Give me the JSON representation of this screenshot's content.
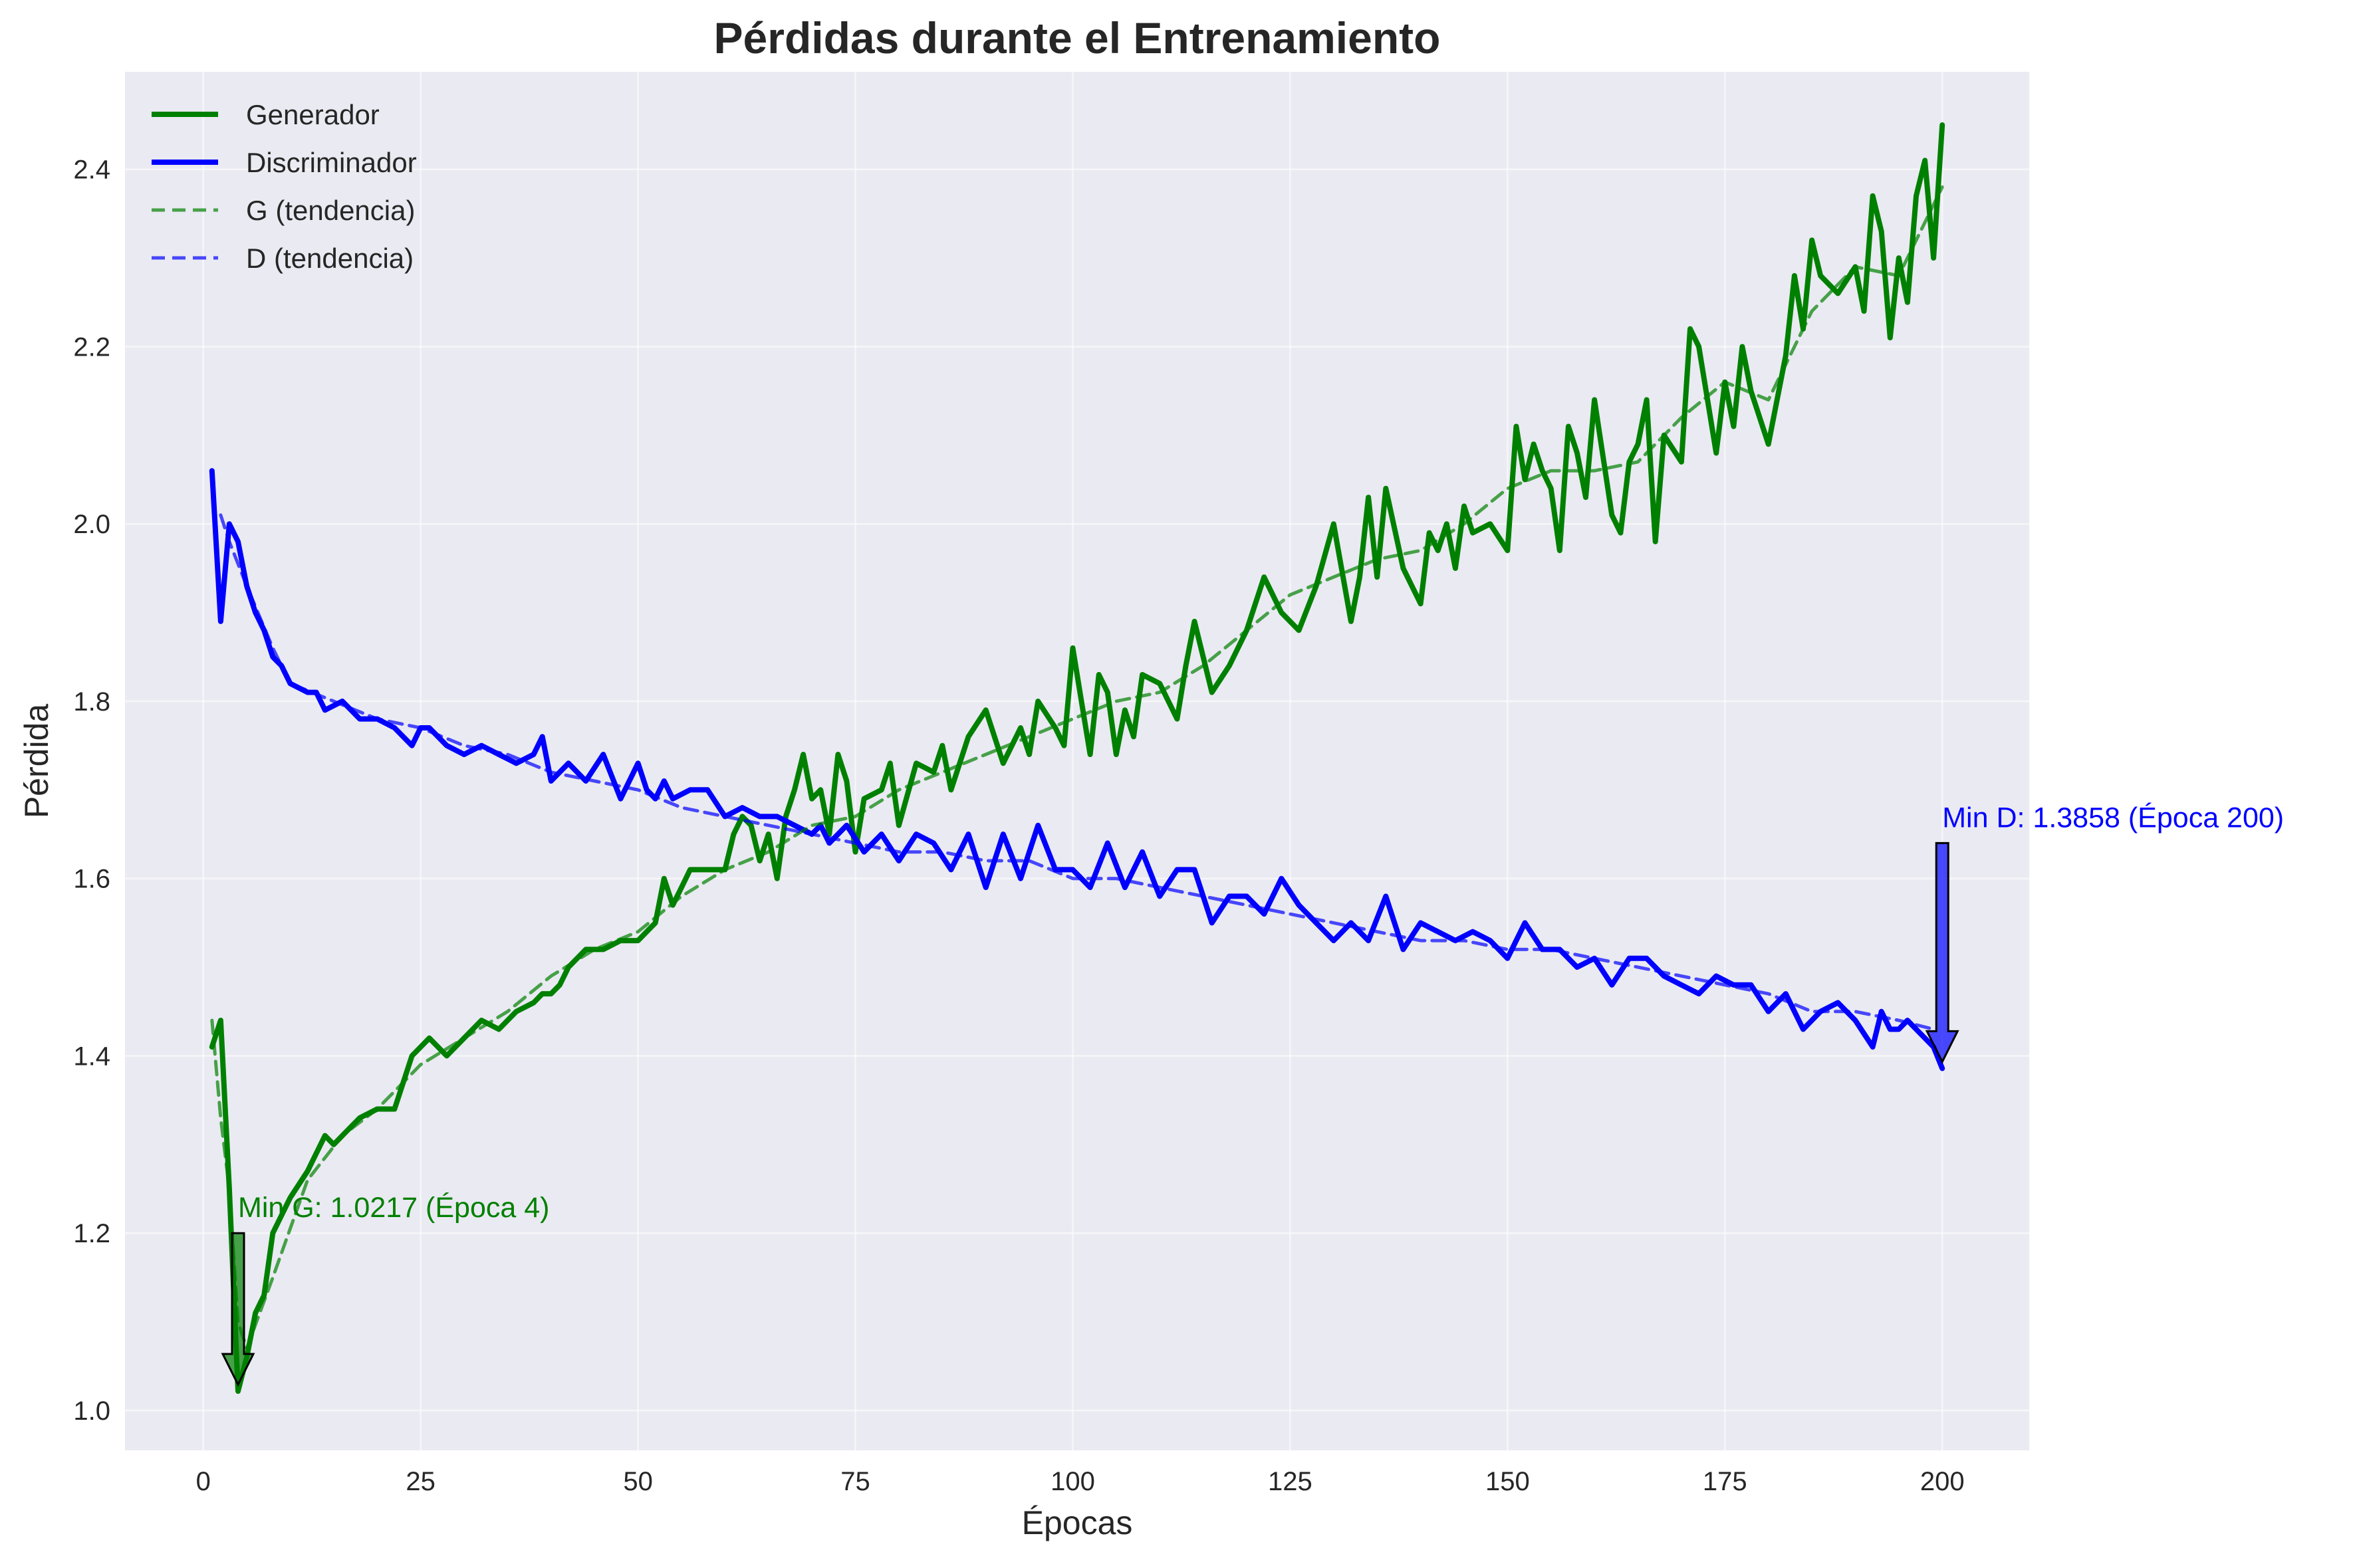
{
  "chart_data": {
    "type": "line",
    "title": "Pérdidas durante el Entrenamiento",
    "xlabel": "Épocas",
    "ylabel": "Pérdida",
    "xlim": [
      -9,
      210
    ],
    "ylim": [
      0.955,
      2.51
    ],
    "xticks": [
      0,
      25,
      50,
      75,
      100,
      125,
      150,
      175,
      200
    ],
    "yticks": [
      1.0,
      1.2,
      1.4,
      1.6,
      1.8,
      2.0,
      2.2,
      2.4
    ],
    "grid": true,
    "legend_position": "top-left",
    "legend": [
      {
        "label": "Generador",
        "color": "#008000",
        "style": "solid"
      },
      {
        "label": "Discriminador",
        "color": "#0000ff",
        "style": "solid"
      },
      {
        "label": "G (tendencia)",
        "color": "#008000",
        "style": "dashed"
      },
      {
        "label": "D (tendencia)",
        "color": "#0000ff",
        "style": "dashed"
      }
    ],
    "series": [
      {
        "name": "Generador",
        "color": "#008000",
        "x": [
          1,
          2,
          3,
          4,
          5,
          6,
          7,
          8,
          10,
          12,
          14,
          15,
          16,
          18,
          20,
          22,
          24,
          26,
          28,
          30,
          32,
          34,
          36,
          38,
          39,
          40,
          41,
          42,
          44,
          46,
          48,
          50,
          52,
          53,
          54,
          55,
          56,
          58,
          60,
          61,
          62,
          63,
          64,
          65,
          66,
          67,
          68,
          69,
          70,
          71,
          72,
          73,
          74,
          75,
          76,
          78,
          79,
          80,
          82,
          84,
          85,
          86,
          88,
          90,
          92,
          93,
          94,
          95,
          96,
          98,
          99,
          100,
          101,
          102,
          103,
          104,
          105,
          106,
          107,
          108,
          110,
          112,
          113,
          114,
          116,
          118,
          120,
          122,
          124,
          126,
          128,
          130,
          132,
          133,
          134,
          135,
          136,
          138,
          140,
          141,
          142,
          143,
          144,
          145,
          146,
          148,
          150,
          151,
          152,
          153,
          154,
          155,
          156,
          157,
          158,
          159,
          160,
          162,
          163,
          164,
          165,
          166,
          167,
          168,
          170,
          171,
          172,
          174,
          175,
          176,
          177,
          178,
          180,
          182,
          183,
          184,
          185,
          186,
          188,
          190,
          191,
          192,
          193,
          194,
          195,
          196,
          197,
          198,
          199,
          200
        ],
        "values": [
          1.41,
          1.44,
          1.25,
          1.0217,
          1.06,
          1.11,
          1.13,
          1.2,
          1.24,
          1.27,
          1.31,
          1.3,
          1.31,
          1.33,
          1.34,
          1.34,
          1.4,
          1.42,
          1.4,
          1.42,
          1.44,
          1.43,
          1.45,
          1.46,
          1.47,
          1.47,
          1.48,
          1.5,
          1.52,
          1.52,
          1.53,
          1.53,
          1.55,
          1.6,
          1.57,
          1.59,
          1.61,
          1.61,
          1.61,
          1.65,
          1.67,
          1.66,
          1.62,
          1.65,
          1.6,
          1.67,
          1.7,
          1.74,
          1.69,
          1.7,
          1.65,
          1.74,
          1.71,
          1.63,
          1.69,
          1.7,
          1.73,
          1.66,
          1.73,
          1.72,
          1.75,
          1.7,
          1.76,
          1.79,
          1.73,
          1.75,
          1.77,
          1.74,
          1.8,
          1.77,
          1.75,
          1.86,
          1.8,
          1.74,
          1.83,
          1.81,
          1.74,
          1.79,
          1.76,
          1.83,
          1.82,
          1.78,
          1.84,
          1.89,
          1.81,
          1.84,
          1.88,
          1.94,
          1.9,
          1.88,
          1.93,
          2.0,
          1.89,
          1.94,
          2.03,
          1.94,
          2.04,
          1.95,
          1.91,
          1.99,
          1.97,
          2.0,
          1.95,
          2.02,
          1.99,
          2.0,
          1.97,
          2.11,
          2.05,
          2.09,
          2.06,
          2.04,
          1.97,
          2.11,
          2.08,
          2.03,
          2.14,
          2.01,
          1.99,
          2.07,
          2.09,
          2.14,
          1.98,
          2.1,
          2.07,
          2.22,
          2.2,
          2.08,
          2.16,
          2.11,
          2.2,
          2.15,
          2.09,
          2.19,
          2.28,
          2.22,
          2.32,
          2.28,
          2.26,
          2.29,
          2.24,
          2.37,
          2.33,
          2.21,
          2.3,
          2.25,
          2.37,
          2.41,
          2.3,
          2.45
        ]
      },
      {
        "name": "Discriminador",
        "color": "#0000ff",
        "x": [
          1,
          2,
          3,
          4,
          5,
          6,
          7,
          8,
          9,
          10,
          12,
          13,
          14,
          16,
          18,
          20,
          22,
          24,
          25,
          26,
          28,
          30,
          32,
          34,
          36,
          38,
          39,
          40,
          42,
          44,
          46,
          48,
          50,
          51,
          52,
          53,
          54,
          56,
          58,
          60,
          62,
          64,
          66,
          68,
          70,
          71,
          72,
          74,
          76,
          78,
          80,
          82,
          84,
          86,
          88,
          90,
          92,
          94,
          96,
          98,
          100,
          102,
          104,
          106,
          108,
          110,
          112,
          114,
          116,
          118,
          120,
          122,
          124,
          126,
          128,
          130,
          132,
          134,
          136,
          138,
          140,
          142,
          144,
          146,
          148,
          150,
          152,
          154,
          156,
          158,
          160,
          162,
          164,
          166,
          168,
          170,
          172,
          174,
          176,
          178,
          180,
          182,
          184,
          186,
          188,
          190,
          192,
          193,
          194,
          195,
          196,
          197,
          198,
          199,
          200
        ],
        "values": [
          2.06,
          1.89,
          2.0,
          1.98,
          1.93,
          1.9,
          1.88,
          1.85,
          1.84,
          1.82,
          1.81,
          1.81,
          1.79,
          1.8,
          1.78,
          1.78,
          1.77,
          1.75,
          1.77,
          1.77,
          1.75,
          1.74,
          1.75,
          1.74,
          1.73,
          1.74,
          1.76,
          1.71,
          1.73,
          1.71,
          1.74,
          1.69,
          1.73,
          1.7,
          1.69,
          1.71,
          1.69,
          1.7,
          1.7,
          1.67,
          1.68,
          1.67,
          1.67,
          1.66,
          1.65,
          1.66,
          1.64,
          1.66,
          1.63,
          1.65,
          1.62,
          1.65,
          1.64,
          1.61,
          1.65,
          1.59,
          1.65,
          1.6,
          1.66,
          1.61,
          1.61,
          1.59,
          1.64,
          1.59,
          1.63,
          1.58,
          1.61,
          1.61,
          1.55,
          1.58,
          1.58,
          1.56,
          1.6,
          1.57,
          1.55,
          1.53,
          1.55,
          1.53,
          1.58,
          1.52,
          1.55,
          1.54,
          1.53,
          1.54,
          1.53,
          1.51,
          1.55,
          1.52,
          1.52,
          1.5,
          1.51,
          1.48,
          1.51,
          1.51,
          1.49,
          1.48,
          1.47,
          1.49,
          1.48,
          1.48,
          1.45,
          1.47,
          1.43,
          1.45,
          1.46,
          1.44,
          1.41,
          1.45,
          1.43,
          1.43,
          1.44,
          1.43,
          1.42,
          1.41,
          1.3858
        ]
      },
      {
        "name": "G (tendencia)",
        "color": "#008000",
        "style": "dashed",
        "x": [
          1,
          2,
          3,
          4,
          5,
          8,
          12,
          16,
          20,
          25,
          30,
          35,
          40,
          45,
          50,
          55,
          60,
          65,
          70,
          75,
          80,
          85,
          90,
          95,
          100,
          105,
          110,
          115,
          120,
          125,
          130,
          135,
          140,
          145,
          150,
          155,
          160,
          165,
          170,
          175,
          180,
          185,
          190,
          195,
          200
        ],
        "values": [
          1.44,
          1.33,
          1.25,
          1.1,
          1.07,
          1.15,
          1.26,
          1.31,
          1.34,
          1.39,
          1.42,
          1.45,
          1.49,
          1.52,
          1.54,
          1.58,
          1.61,
          1.63,
          1.66,
          1.67,
          1.7,
          1.72,
          1.74,
          1.76,
          1.78,
          1.8,
          1.81,
          1.84,
          1.88,
          1.92,
          1.94,
          1.96,
          1.97,
          2.0,
          2.04,
          2.06,
          2.06,
          2.07,
          2.12,
          2.16,
          2.14,
          2.24,
          2.29,
          2.28,
          2.38
        ]
      },
      {
        "name": "D (tendencia)",
        "color": "#0000ff",
        "style": "dashed",
        "x": [
          2,
          3,
          5,
          8,
          10,
          15,
          20,
          25,
          30,
          35,
          40,
          45,
          50,
          55,
          60,
          65,
          70,
          75,
          80,
          85,
          90,
          95,
          100,
          105,
          110,
          115,
          120,
          125,
          130,
          135,
          140,
          145,
          150,
          155,
          160,
          165,
          170,
          175,
          180,
          185,
          190,
          195,
          199
        ],
        "values": [
          2.01,
          1.98,
          1.93,
          1.86,
          1.82,
          1.8,
          1.78,
          1.77,
          1.75,
          1.74,
          1.72,
          1.71,
          1.7,
          1.68,
          1.67,
          1.66,
          1.65,
          1.64,
          1.63,
          1.63,
          1.62,
          1.62,
          1.6,
          1.6,
          1.59,
          1.58,
          1.57,
          1.56,
          1.55,
          1.54,
          1.53,
          1.53,
          1.52,
          1.52,
          1.51,
          1.5,
          1.49,
          1.48,
          1.47,
          1.45,
          1.45,
          1.44,
          1.43
        ]
      }
    ],
    "annotations": [
      {
        "text": "Min G: 1.0217 (Época 4)",
        "x": 4,
        "y": 1.0217,
        "text_x": 4,
        "text_y": 1.2,
        "color": "#008000"
      },
      {
        "text": "Min D: 1.3858 (Época 200)",
        "x": 200,
        "y": 1.3858,
        "text_x": 200,
        "text_y": 1.64,
        "color": "#0000ff"
      }
    ]
  }
}
